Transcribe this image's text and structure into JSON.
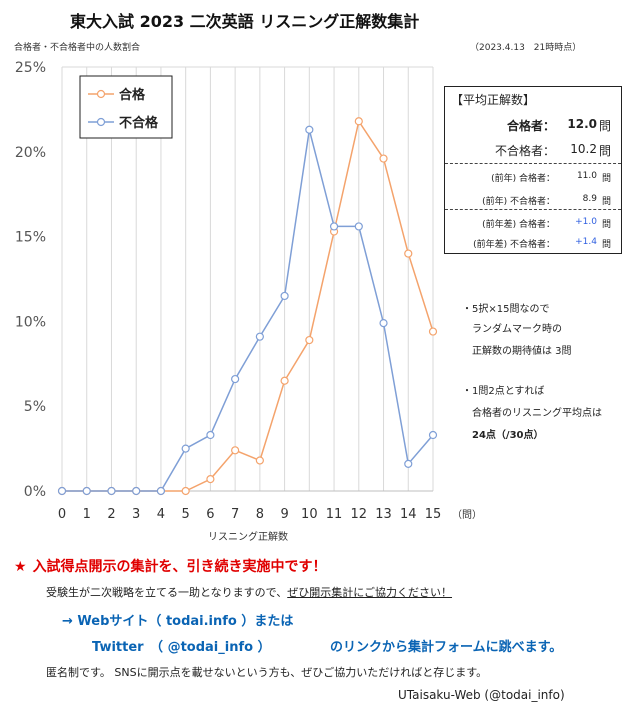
{
  "header": {
    "title": "東大入試 2023 二次英語 リスニング正解数集計",
    "subtitle": "合格者・不合格者中の人数割合",
    "timestamp": "（2023.4.13　21時時点）"
  },
  "chart_data": {
    "type": "line",
    "x": [
      0,
      1,
      2,
      3,
      4,
      5,
      6,
      7,
      8,
      9,
      10,
      11,
      12,
      13,
      14,
      15
    ],
    "x_tick_labels": [
      "0",
      "1",
      "2",
      "3",
      "4",
      "5",
      "6",
      "7",
      "8",
      "9",
      "10",
      "11",
      "12",
      "13",
      "14",
      "15"
    ],
    "x_unit": "（問）",
    "xlabel": "リスニング正解数",
    "ylabel": "",
    "ylim": [
      0,
      25
    ],
    "y_ticks": [
      0,
      5,
      10,
      15,
      20,
      25
    ],
    "y_tick_labels": [
      "0%",
      "5%",
      "10%",
      "15%",
      "20%",
      "25%"
    ],
    "grid": "vertical",
    "legend_position": "top-left",
    "series": [
      {
        "name": "合格",
        "color": "#f4a36c",
        "values": [
          0,
          0,
          0,
          0,
          0,
          0,
          0.7,
          2.4,
          1.8,
          6.5,
          8.9,
          15.3,
          21.8,
          19.6,
          14.0,
          9.4
        ]
      },
      {
        "name": "不合格",
        "color": "#7f9fd6",
        "values": [
          0,
          0,
          0,
          0,
          0,
          2.5,
          3.3,
          6.6,
          9.1,
          11.5,
          21.3,
          15.6,
          15.6,
          9.9,
          1.6,
          3.3
        ]
      }
    ]
  },
  "stats": {
    "heading": "【平均正解数】",
    "rows": [
      {
        "label": "合格者：",
        "value": "12.0",
        "unit": "問",
        "style": "big-bold"
      },
      {
        "label": "不合格者：",
        "value": "10.2",
        "unit": "問",
        "style": "big"
      },
      {
        "label": "(前年) 合格者：",
        "value": "11.0",
        "unit": "問",
        "style": "small"
      },
      {
        "label": "(前年) 不合格者：",
        "value": "8.9",
        "unit": "問",
        "style": "small"
      },
      {
        "label": "(前年差) 合格者：",
        "value": "+1.0",
        "unit": "問",
        "style": "small-pos"
      },
      {
        "label": "(前年差) 不合格者：",
        "value": "+1.4",
        "unit": "問",
        "style": "small-pos"
      }
    ]
  },
  "notes": {
    "n1": "・5択×15問なので",
    "n2": "ランダムマーク時の",
    "n3": "正解数の期待値は 3問",
    "n4": "・1問2点とすれば",
    "n5": "合格者のリスニング平均点は",
    "n6": "24点（/30点）"
  },
  "footer": {
    "star": "★",
    "headline": "入試得点開示の集計を、引き続き実施中です！",
    "line2_pre": "受験生が二次戦略を立てる一助となりますので、",
    "line2_ul": "ぜひ開示集計にご協力ください！",
    "line3": "→ Webサイト（ todai.info ）または",
    "line4a": "Twitter　（ @todai_info ）",
    "line4b": "のリンクから集計フォームに跳べます。",
    "line5": "匿名制です。 SNSに開示点を載せないという方も、ぜひご協力いただければと存じます。",
    "credit": "UTaisaku-Web (@todai_info)"
  }
}
